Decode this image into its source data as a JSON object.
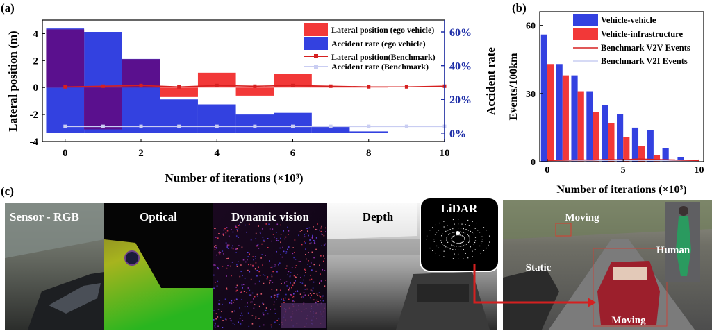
{
  "panel_labels": {
    "a": "(a)",
    "b": "(b)",
    "c": "(c)"
  },
  "colors": {
    "lateral_ego": "#f23838",
    "accident_ego": "#3341e0",
    "overlap": "#5a108e",
    "lateral_bench": "#d62020",
    "accident_bench": "#c9cdf2",
    "right_axis": "#1f2fa8"
  },
  "chart_data": [
    {
      "type": "bar",
      "panel": "a",
      "xlabel": "Number of iterations (×10³)",
      "ylabel": "Lateral position (m)",
      "y2label": "Accident rate",
      "xlim": [
        -0.6,
        10
      ],
      "ylim": [
        -4,
        5
      ],
      "y2lim": [
        -5,
        67
      ],
      "x_ticks": [
        "0",
        "2",
        "4",
        "6",
        "8",
        "10"
      ],
      "y_ticks": [
        "4",
        "2",
        "0",
        "-2",
        "-4"
      ],
      "y2_ticks": [
        "0%",
        "20%",
        "40%",
        "60%"
      ],
      "legend_position": "top-right",
      "legend": [
        "Lateral position (ego vehicle)",
        "Accident rate (ego vehicle)",
        "Lateral position(Benchmark)",
        "Accident rate (Benchmark)"
      ],
      "x": [
        0,
        1,
        2,
        3,
        4,
        5,
        6,
        7,
        8,
        9,
        10
      ],
      "series": [
        {
          "name": "Lateral position (ego vehicle)",
          "kind": "bar",
          "axis": "left",
          "values": [
            4.3,
            -3.1,
            2.1,
            -0.7,
            1.1,
            -0.6,
            1.0,
            0.1,
            0.05,
            0.0,
            0.0
          ]
        },
        {
          "name": "Accident rate (ego vehicle)",
          "kind": "bar",
          "axis": "right",
          "values": [
            62,
            60,
            44,
            20,
            17,
            11,
            12,
            4,
            1,
            0,
            0
          ]
        },
        {
          "name": "Lateral position(Benchmark)",
          "kind": "line",
          "axis": "left",
          "values": [
            0.05,
            0.1,
            0.15,
            0.05,
            0.15,
            0.1,
            0.15,
            0.1,
            0.05,
            0.05,
            0.1
          ]
        },
        {
          "name": "Accident rate (Benchmark)",
          "kind": "line",
          "axis": "right",
          "values": [
            4,
            4,
            4,
            4,
            4,
            4,
            4,
            4,
            4,
            4,
            4
          ]
        }
      ]
    },
    {
      "type": "bar",
      "panel": "b",
      "xlabel": "Number of iterations (×10³)",
      "ylabel": "Events/100km",
      "xlim": [
        -0.5,
        10.3
      ],
      "ylim": [
        0,
        66
      ],
      "x_ticks": [
        "0",
        "5",
        "10"
      ],
      "y_ticks": [
        "60",
        "30",
        "0"
      ],
      "legend_position": "top-right",
      "legend": [
        "Vehicle-vehicle",
        "Vehicle-infrastructure",
        "Benchmark V2V Events",
        "Benchmark V2I Events"
      ],
      "x": [
        0,
        1,
        2,
        3,
        4,
        5,
        6,
        7,
        8,
        9,
        10
      ],
      "series": [
        {
          "name": "Vehicle-vehicle",
          "kind": "bar",
          "values": [
            56,
            43,
            38,
            31,
            25,
            21,
            15,
            14,
            6,
            2,
            0
          ]
        },
        {
          "name": "Vehicle-infrastructure",
          "kind": "bar",
          "values": [
            43,
            38,
            31,
            22,
            17,
            11,
            7,
            3,
            1,
            0,
            0
          ]
        },
        {
          "name": "Benchmark V2V Events",
          "kind": "line",
          "values": [
            0.5,
            0.6,
            0.8,
            0.7,
            1.0,
            0.8,
            1.2,
            1.0,
            0.8,
            0.6,
            0.5
          ]
        },
        {
          "name": "Benchmark V2I Events",
          "kind": "line",
          "values": [
            0.3,
            0.4,
            0.5,
            0.4,
            0.6,
            0.5,
            0.6,
            0.5,
            0.4,
            0.3,
            0.3
          ]
        }
      ]
    }
  ],
  "panel_c": {
    "tiles": [
      "Sensor - RGB",
      "Optical",
      "Dynamic vision",
      "Depth",
      "LiDAR"
    ],
    "scene_labels": [
      "Moving",
      "Human",
      "Static",
      "Moving"
    ]
  }
}
